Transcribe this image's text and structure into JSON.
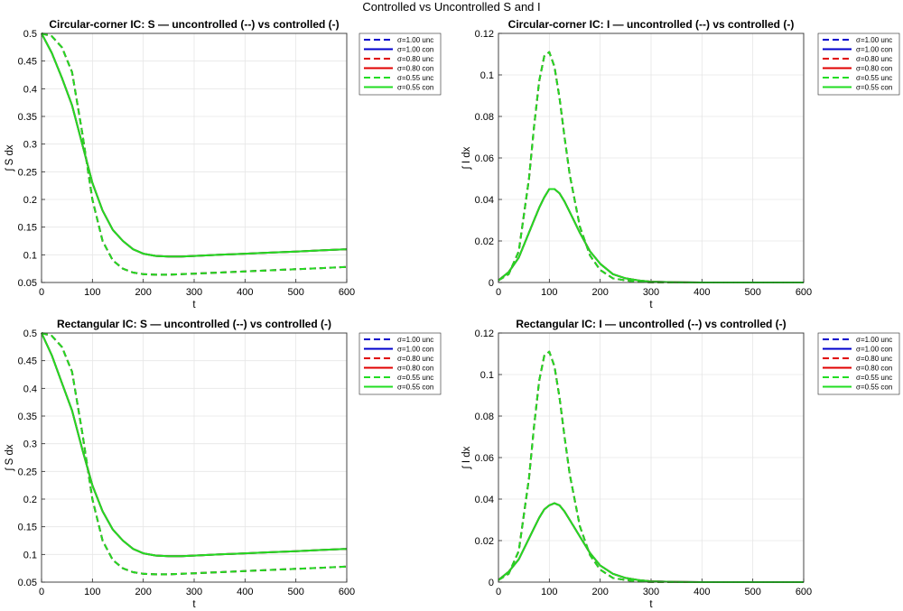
{
  "figure_title": "Controlled vs Uncontrolled S and I",
  "legend": [
    {
      "label": "σ=1.00  unc",
      "color": "#0000cc",
      "style": "dashed"
    },
    {
      "label": "σ=1.00  con",
      "color": "#0000cc",
      "style": "solid"
    },
    {
      "label": "σ=0.80  unc",
      "color": "#e00000",
      "style": "dashed"
    },
    {
      "label": "σ=0.80  con",
      "color": "#e00000",
      "style": "solid"
    },
    {
      "label": "σ=0.55  unc",
      "color": "#22dd22",
      "style": "dashed"
    },
    {
      "label": "σ=0.55  con",
      "color": "#22dd22",
      "style": "solid"
    }
  ],
  "chart_data": [
    {
      "type": "line",
      "title": "Circular-corner IC: S — uncontrolled (--) vs controlled (-)",
      "xlabel": "t",
      "ylabel": "∫ S dx",
      "xlim": [
        0,
        600
      ],
      "ylim": [
        0.05,
        0.5
      ],
      "xticks": [
        "0",
        "100",
        "200",
        "300",
        "400",
        "500",
        "600"
      ],
      "yticks": [
        "0.05",
        "0.1",
        "0.15",
        "0.2",
        "0.25",
        "0.3",
        "0.35",
        "0.4",
        "0.45",
        "0.5"
      ],
      "grid": true,
      "x": [
        0,
        20,
        40,
        60,
        80,
        100,
        120,
        140,
        160,
        180,
        200,
        225,
        250,
        275,
        300,
        350,
        400,
        450,
        500,
        550,
        600
      ],
      "series": [
        {
          "name": "σ=1.00  unc",
          "values": [
            0.5,
            0.495,
            0.475,
            0.43,
            0.32,
            0.2,
            0.125,
            0.09,
            0.075,
            0.068,
            0.065,
            0.064,
            0.064,
            0.065,
            0.066,
            0.068,
            0.07,
            0.072,
            0.074,
            0.076,
            0.078
          ]
        },
        {
          "name": "σ=1.00  con",
          "values": [
            0.5,
            0.465,
            0.42,
            0.37,
            0.3,
            0.23,
            0.18,
            0.145,
            0.125,
            0.11,
            0.102,
            0.098,
            0.097,
            0.097,
            0.098,
            0.1,
            0.102,
            0.104,
            0.106,
            0.108,
            0.11
          ]
        },
        {
          "name": "σ=0.80  unc",
          "values": [
            0.5,
            0.495,
            0.475,
            0.43,
            0.32,
            0.2,
            0.125,
            0.09,
            0.075,
            0.068,
            0.065,
            0.064,
            0.064,
            0.065,
            0.066,
            0.068,
            0.07,
            0.072,
            0.074,
            0.076,
            0.078
          ]
        },
        {
          "name": "σ=0.80  con",
          "values": [
            0.5,
            0.465,
            0.42,
            0.37,
            0.3,
            0.23,
            0.18,
            0.145,
            0.125,
            0.11,
            0.102,
            0.098,
            0.097,
            0.097,
            0.098,
            0.1,
            0.102,
            0.104,
            0.106,
            0.108,
            0.11
          ]
        },
        {
          "name": "σ=0.55  unc",
          "values": [
            0.5,
            0.495,
            0.475,
            0.43,
            0.32,
            0.2,
            0.125,
            0.09,
            0.075,
            0.068,
            0.065,
            0.064,
            0.064,
            0.065,
            0.066,
            0.068,
            0.07,
            0.072,
            0.074,
            0.076,
            0.078
          ]
        },
        {
          "name": "σ=0.55  con",
          "values": [
            0.5,
            0.465,
            0.42,
            0.37,
            0.3,
            0.23,
            0.18,
            0.145,
            0.125,
            0.11,
            0.102,
            0.098,
            0.097,
            0.097,
            0.098,
            0.1,
            0.102,
            0.104,
            0.106,
            0.108,
            0.11
          ]
        }
      ]
    },
    {
      "type": "line",
      "title": "Circular-corner IC: I — uncontrolled (--) vs controlled (-)",
      "xlabel": "t",
      "ylabel": "∫ I dx",
      "xlim": [
        0,
        600
      ],
      "ylim": [
        0,
        0.12
      ],
      "xticks": [
        "0",
        "100",
        "200",
        "300",
        "400",
        "500",
        "600"
      ],
      "yticks": [
        "0",
        "0.02",
        "0.04",
        "0.06",
        "0.08",
        "0.1",
        "0.12"
      ],
      "grid": true,
      "x": [
        0,
        20,
        40,
        60,
        70,
        80,
        90,
        100,
        110,
        120,
        130,
        140,
        160,
        180,
        200,
        225,
        250,
        275,
        300,
        350,
        400,
        500,
        600
      ],
      "series": [
        {
          "name": "σ=1.00  unc",
          "values": [
            0.001,
            0.004,
            0.015,
            0.05,
            0.075,
            0.097,
            0.109,
            0.111,
            0.104,
            0.089,
            0.07,
            0.052,
            0.027,
            0.013,
            0.006,
            0.002,
            0.001,
            0.0003,
            0.0001,
            0,
            0,
            0,
            0
          ]
        },
        {
          "name": "σ=1.00  con",
          "values": [
            0.001,
            0.005,
            0.012,
            0.024,
            0.03,
            0.036,
            0.041,
            0.045,
            0.045,
            0.043,
            0.039,
            0.034,
            0.024,
            0.015,
            0.009,
            0.004,
            0.002,
            0.001,
            0.0004,
            0.0001,
            0,
            0,
            0
          ]
        },
        {
          "name": "σ=0.80  unc",
          "values": [
            0.001,
            0.004,
            0.015,
            0.05,
            0.075,
            0.097,
            0.109,
            0.111,
            0.104,
            0.089,
            0.07,
            0.052,
            0.027,
            0.013,
            0.006,
            0.002,
            0.001,
            0.0003,
            0.0001,
            0,
            0,
            0,
            0
          ]
        },
        {
          "name": "σ=0.80  con",
          "values": [
            0.001,
            0.005,
            0.012,
            0.024,
            0.03,
            0.036,
            0.041,
            0.045,
            0.045,
            0.043,
            0.039,
            0.034,
            0.024,
            0.015,
            0.009,
            0.004,
            0.002,
            0.001,
            0.0004,
            0.0001,
            0,
            0,
            0
          ]
        },
        {
          "name": "σ=0.55  unc",
          "values": [
            0.001,
            0.004,
            0.015,
            0.05,
            0.075,
            0.097,
            0.109,
            0.111,
            0.104,
            0.089,
            0.07,
            0.052,
            0.027,
            0.013,
            0.006,
            0.002,
            0.001,
            0.0003,
            0.0001,
            0,
            0,
            0,
            0
          ]
        },
        {
          "name": "σ=0.55  con",
          "values": [
            0.001,
            0.005,
            0.012,
            0.024,
            0.03,
            0.036,
            0.041,
            0.045,
            0.045,
            0.043,
            0.039,
            0.034,
            0.024,
            0.015,
            0.009,
            0.004,
            0.002,
            0.001,
            0.0004,
            0.0001,
            0,
            0,
            0
          ]
        }
      ]
    },
    {
      "type": "line",
      "title": "Rectangular IC: S — uncontrolled (--) vs controlled (-)",
      "xlabel": "t",
      "ylabel": "∫ S dx",
      "xlim": [
        0,
        600
      ],
      "ylim": [
        0.05,
        0.5
      ],
      "xticks": [
        "0",
        "100",
        "200",
        "300",
        "400",
        "500",
        "600"
      ],
      "yticks": [
        "0.05",
        "0.1",
        "0.15",
        "0.2",
        "0.25",
        "0.3",
        "0.35",
        "0.4",
        "0.45",
        "0.5"
      ],
      "grid": true,
      "x": [
        0,
        20,
        40,
        60,
        80,
        100,
        120,
        140,
        160,
        180,
        200,
        225,
        250,
        275,
        300,
        350,
        400,
        450,
        500,
        550,
        600
      ],
      "series": [
        {
          "name": "σ=1.00  unc",
          "values": [
            0.5,
            0.495,
            0.475,
            0.43,
            0.32,
            0.2,
            0.125,
            0.09,
            0.075,
            0.068,
            0.065,
            0.064,
            0.064,
            0.065,
            0.066,
            0.068,
            0.07,
            0.072,
            0.074,
            0.076,
            0.078
          ]
        },
        {
          "name": "σ=1.00  con",
          "values": [
            0.5,
            0.46,
            0.41,
            0.36,
            0.29,
            0.225,
            0.178,
            0.145,
            0.125,
            0.11,
            0.102,
            0.098,
            0.097,
            0.097,
            0.098,
            0.1,
            0.102,
            0.104,
            0.106,
            0.108,
            0.11
          ]
        },
        {
          "name": "σ=0.80  unc",
          "values": [
            0.5,
            0.495,
            0.475,
            0.43,
            0.32,
            0.2,
            0.125,
            0.09,
            0.075,
            0.068,
            0.065,
            0.064,
            0.064,
            0.065,
            0.066,
            0.068,
            0.07,
            0.072,
            0.074,
            0.076,
            0.078
          ]
        },
        {
          "name": "σ=0.80  con",
          "values": [
            0.5,
            0.46,
            0.41,
            0.36,
            0.29,
            0.225,
            0.178,
            0.145,
            0.125,
            0.11,
            0.102,
            0.098,
            0.097,
            0.097,
            0.098,
            0.1,
            0.102,
            0.104,
            0.106,
            0.108,
            0.11
          ]
        },
        {
          "name": "σ=0.55  unc",
          "values": [
            0.5,
            0.495,
            0.475,
            0.43,
            0.32,
            0.2,
            0.125,
            0.09,
            0.075,
            0.068,
            0.065,
            0.064,
            0.064,
            0.065,
            0.066,
            0.068,
            0.07,
            0.072,
            0.074,
            0.076,
            0.078
          ]
        },
        {
          "name": "σ=0.55  con",
          "values": [
            0.5,
            0.46,
            0.41,
            0.36,
            0.29,
            0.225,
            0.178,
            0.145,
            0.125,
            0.11,
            0.102,
            0.098,
            0.097,
            0.097,
            0.098,
            0.1,
            0.102,
            0.104,
            0.106,
            0.108,
            0.11
          ]
        }
      ]
    },
    {
      "type": "line",
      "title": "Rectangular IC: I — uncontrolled (--) vs controlled (-)",
      "xlabel": "t",
      "ylabel": "∫ I dx",
      "xlim": [
        0,
        600
      ],
      "ylim": [
        0,
        0.12
      ],
      "xticks": [
        "0",
        "100",
        "200",
        "300",
        "400",
        "500",
        "600"
      ],
      "yticks": [
        "0",
        "0.02",
        "0.04",
        "0.06",
        "0.08",
        "0.1",
        "0.12"
      ],
      "grid": true,
      "x": [
        0,
        20,
        40,
        60,
        70,
        80,
        90,
        100,
        110,
        120,
        130,
        140,
        160,
        180,
        200,
        225,
        250,
        275,
        300,
        350,
        400,
        500,
        600
      ],
      "series": [
        {
          "name": "σ=1.00  unc",
          "values": [
            0.001,
            0.004,
            0.015,
            0.05,
            0.075,
            0.097,
            0.109,
            0.111,
            0.104,
            0.089,
            0.07,
            0.052,
            0.027,
            0.013,
            0.006,
            0.002,
            0.001,
            0.0003,
            0.0001,
            0,
            0,
            0,
            0
          ]
        },
        {
          "name": "σ=1.00  con",
          "values": [
            0.001,
            0.005,
            0.011,
            0.021,
            0.026,
            0.031,
            0.035,
            0.037,
            0.038,
            0.037,
            0.034,
            0.03,
            0.022,
            0.014,
            0.008,
            0.004,
            0.002,
            0.001,
            0.0004,
            0.0001,
            0,
            0,
            0
          ]
        },
        {
          "name": "σ=0.80  unc",
          "values": [
            0.001,
            0.004,
            0.015,
            0.05,
            0.075,
            0.097,
            0.109,
            0.111,
            0.104,
            0.089,
            0.07,
            0.052,
            0.027,
            0.013,
            0.006,
            0.002,
            0.001,
            0.0003,
            0.0001,
            0,
            0,
            0,
            0
          ]
        },
        {
          "name": "σ=0.80  con",
          "values": [
            0.001,
            0.005,
            0.011,
            0.021,
            0.026,
            0.031,
            0.035,
            0.037,
            0.038,
            0.037,
            0.034,
            0.03,
            0.022,
            0.014,
            0.008,
            0.004,
            0.002,
            0.001,
            0.0004,
            0.0001,
            0,
            0,
            0
          ]
        },
        {
          "name": "σ=0.55  unc",
          "values": [
            0.001,
            0.004,
            0.015,
            0.05,
            0.075,
            0.097,
            0.109,
            0.111,
            0.104,
            0.089,
            0.07,
            0.052,
            0.027,
            0.013,
            0.006,
            0.002,
            0.001,
            0.0003,
            0.0001,
            0,
            0,
            0,
            0
          ]
        },
        {
          "name": "σ=0.55  con",
          "values": [
            0.001,
            0.005,
            0.011,
            0.021,
            0.026,
            0.031,
            0.035,
            0.037,
            0.038,
            0.037,
            0.034,
            0.03,
            0.022,
            0.014,
            0.008,
            0.004,
            0.002,
            0.001,
            0.0004,
            0.0001,
            0,
            0,
            0
          ]
        }
      ]
    }
  ]
}
